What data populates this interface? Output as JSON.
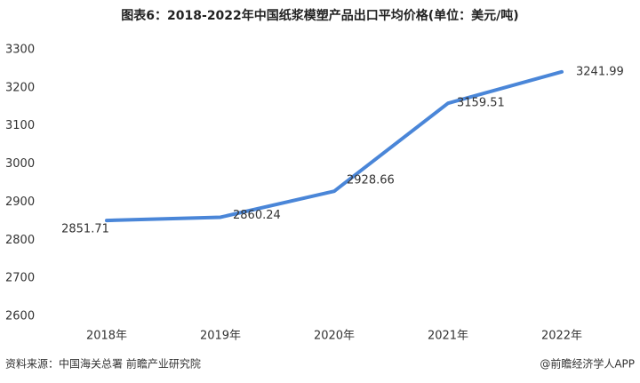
{
  "chart_data": {
    "type": "line",
    "title": "图表6：2018-2022年中国纸浆模塑产品出口平均价格(单位：美元/吨)",
    "categories": [
      "2018年",
      "2019年",
      "2020年",
      "2021年",
      "2022年"
    ],
    "series": [
      {
        "color": "#4a86d8",
        "values": [
          2851.71,
          2860.24,
          2928.66,
          3159.51,
          3241.99
        ]
      }
    ],
    "ylim": [
      2600,
      3300
    ],
    "yticks": [
      2600,
      2700,
      2800,
      2900,
      3000,
      3100,
      3200,
      3300
    ],
    "grid": false,
    "source": "资料来源：中国海关总署 前瞻产业研究院",
    "credit": "@前瞻经济学人APP"
  }
}
